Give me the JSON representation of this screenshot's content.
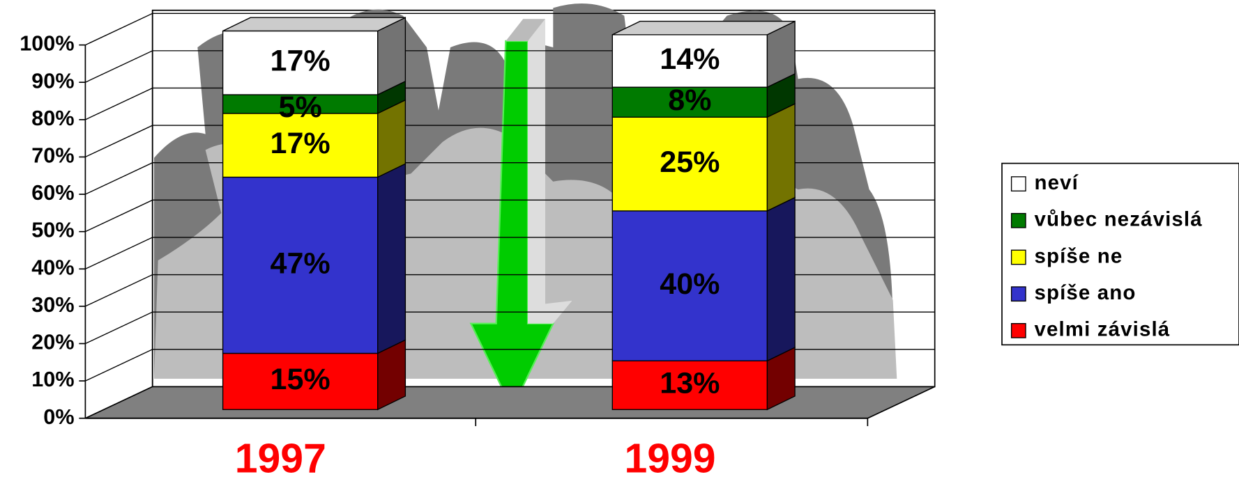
{
  "chart_data": {
    "type": "bar3d_stacked",
    "categories": [
      "1997",
      "1999"
    ],
    "series": [
      {
        "name": "velmi závislá",
        "color": "#ff0000",
        "values": [
          15,
          13
        ],
        "value_labels": [
          "15%",
          "13%"
        ]
      },
      {
        "name": "spíše ano",
        "color": "#3333cc",
        "values": [
          47,
          40
        ],
        "value_labels": [
          "47%",
          "40%"
        ]
      },
      {
        "name": "spíše ne",
        "color": "#ffff00",
        "values": [
          17,
          25
        ],
        "value_labels": [
          "17%",
          "25%"
        ]
      },
      {
        "name": "vůbec nezávislá",
        "color": "#007a00",
        "values": [
          5,
          8
        ],
        "value_labels": [
          "5%",
          "8%"
        ]
      },
      {
        "name": "neví",
        "color": "#ffffff",
        "values": [
          17,
          14
        ],
        "value_labels": [
          "17%",
          "14%"
        ]
      }
    ],
    "ylim": [
      0,
      100
    ],
    "yticks": [
      {
        "value": 0,
        "label": "0%"
      },
      {
        "value": 10,
        "label": "10%"
      },
      {
        "value": 20,
        "label": "20%"
      },
      {
        "value": 30,
        "label": "30%"
      },
      {
        "value": 40,
        "label": "40%"
      },
      {
        "value": 50,
        "label": "50%"
      },
      {
        "value": 60,
        "label": "60%"
      },
      {
        "value": 70,
        "label": "70%"
      },
      {
        "value": 80,
        "label": "80%"
      },
      {
        "value": 90,
        "label": "90%"
      },
      {
        "value": 100,
        "label": "100%"
      }
    ],
    "grid": true,
    "legend": "right"
  }
}
